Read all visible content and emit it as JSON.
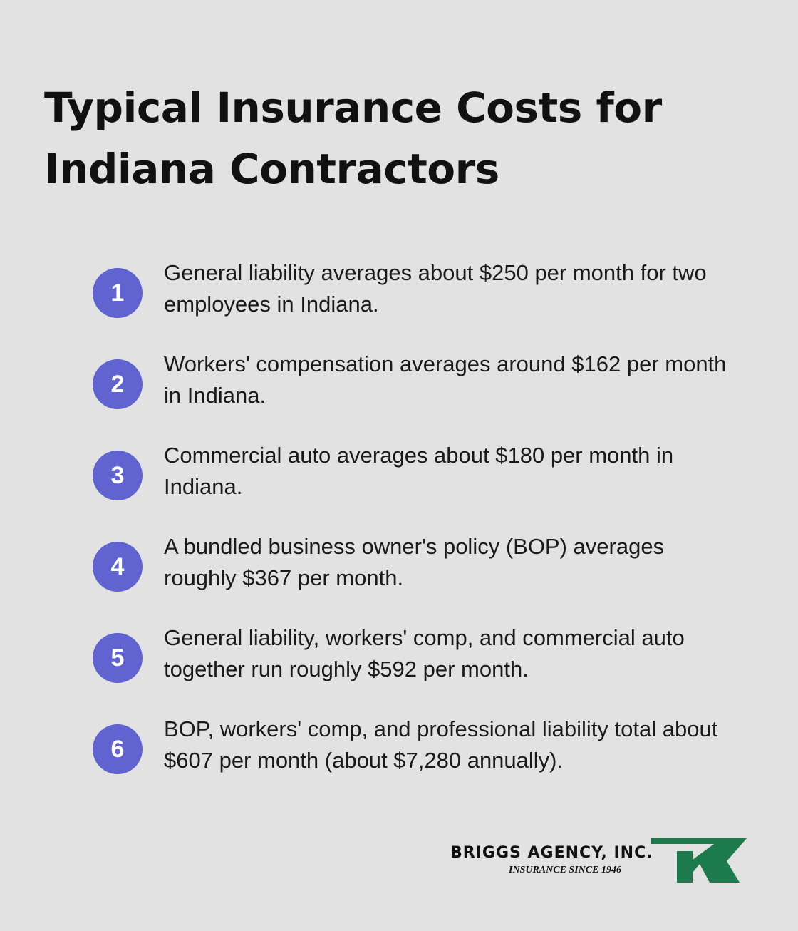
{
  "title": "Typical Insurance Costs for Indiana Contractors",
  "items": [
    {
      "number": "1",
      "text": "General liability averages about $250 per month for two employees in Indiana."
    },
    {
      "number": "2",
      "text": "Workers' compensation averages around $162 per month in Indiana."
    },
    {
      "number": "3",
      "text": "Commercial auto averages about $180 per month in Indiana."
    },
    {
      "number": "4",
      "text": "A bundled business owner's policy (BOP) averages roughly $367 per month."
    },
    {
      "number": "5",
      "text": "General liability, workers' comp, and commercial auto together run roughly $592 per month."
    },
    {
      "number": "6",
      "text": "BOP, workers' comp, and professional liability total about $607 per month (about $7,280 annually)."
    }
  ],
  "logo": {
    "name": "BRIGGS AGENCY, INC.",
    "tagline": "INSURANCE SINCE 1946"
  }
}
